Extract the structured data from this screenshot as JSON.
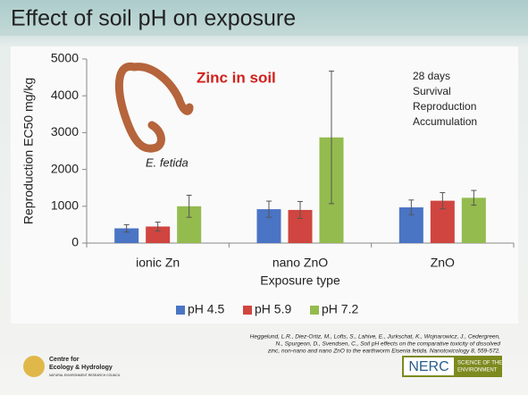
{
  "slide": {
    "title": "Effect of soil pH on exposure",
    "reference": [
      "Heggelund, L.R., Diez-Ortiz, M., Lofts, S., Lahive, E., Jurkschat, K., Wojnarowicz, J., Cedergreen,",
      "N., Spurgeon, D., Svendsen, C., Soil pH effects on the comparative toxicity of dissolved",
      "zinc, non-nano and nano ZnO to the earthworm Eisenia fetida. Nanotoxicology 8, 559-572."
    ],
    "ceh_logo": [
      "Centre for",
      "Ecology & Hydrology",
      "NATURAL ENVIRONMENT RESEARCH COUNCIL"
    ],
    "nerc_logo": [
      "NERC",
      "SCIENCE OF THE",
      "ENVIRONMENT"
    ]
  },
  "chart_data": {
    "type": "bar",
    "y_label": "Reproduction EC50 mg/kg",
    "x_label": "Exposure type",
    "categories": [
      "ionic Zn",
      "nano ZnO",
      "ZnO"
    ],
    "series": [
      {
        "name": "pH 4.5",
        "color": "#4a74c4",
        "values": [
          400,
          920,
          970
        ],
        "errors": [
          100,
          220,
          200
        ]
      },
      {
        "name": "pH 5.9",
        "color": "#d0453f",
        "values": [
          450,
          900,
          1150
        ],
        "errors": [
          120,
          230,
          220
        ]
      },
      {
        "name": "pH 7.2",
        "color": "#94bb4e",
        "values": [
          1000,
          2870,
          1230
        ],
        "errors": [
          300,
          1800,
          200
        ]
      }
    ],
    "ylim": [
      0,
      5000
    ],
    "yticks": [
      0,
      1000,
      2000,
      3000,
      4000,
      5000
    ],
    "annotations": [
      "Zinc in soil",
      "E. fetida",
      "28 days",
      "Survival",
      "Reproduction",
      "Accumulation"
    ],
    "legend": "bottom"
  }
}
